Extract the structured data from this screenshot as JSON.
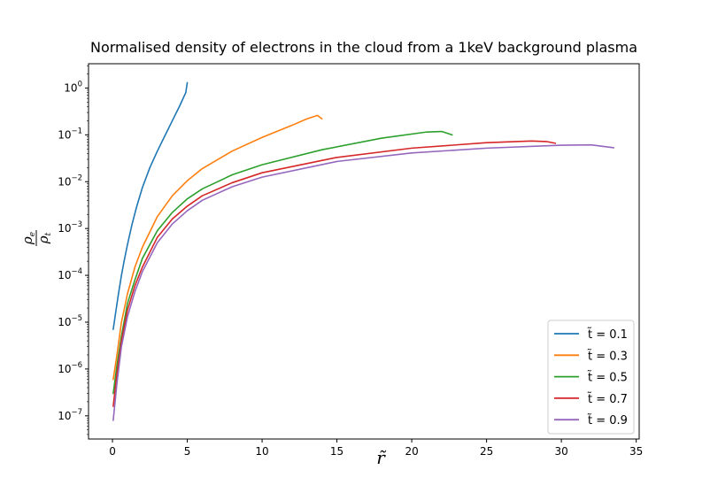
{
  "chart_data": {
    "type": "line",
    "title": "Normalised density of electrons in the cloud from a 1keV background plasma",
    "xlabel": "r̃",
    "ylabel": "ρe / ρt",
    "ylabel_num": "ρ",
    "ylabel_num_sub": "e",
    "ylabel_den": "ρ",
    "ylabel_den_sub": "t",
    "xlim": [
      -1.6,
      35.2
    ],
    "ylim": [
      3.2e-08,
      3.3
    ],
    "yscale": "log",
    "grid": false,
    "legend_position": "lower-right",
    "x_ticks": [
      {
        "value": 0,
        "label": "0"
      },
      {
        "value": 5,
        "label": "5"
      },
      {
        "value": 10,
        "label": "10"
      },
      {
        "value": 15,
        "label": "15"
      },
      {
        "value": 20,
        "label": "20"
      },
      {
        "value": 25,
        "label": "25"
      },
      {
        "value": 30,
        "label": "30"
      },
      {
        "value": 35,
        "label": "35"
      }
    ],
    "y_ticks": [
      {
        "exp": 0,
        "base": "10",
        "power": "0"
      },
      {
        "exp": -1,
        "base": "10",
        "power": "−1"
      },
      {
        "exp": -2,
        "base": "10",
        "power": "−2"
      },
      {
        "exp": -3,
        "base": "10",
        "power": "−3"
      },
      {
        "exp": -4,
        "base": "10",
        "power": "−4"
      },
      {
        "exp": -5,
        "base": "10",
        "power": "−5"
      },
      {
        "exp": -6,
        "base": "10",
        "power": "−6"
      },
      {
        "exp": -7,
        "base": "10",
        "power": "−7"
      }
    ],
    "series": [
      {
        "name": "t̃ = 0.1",
        "color": "#1f77b4",
        "x": [
          0.05,
          0.2,
          0.4,
          0.6,
          0.8,
          1.0,
          1.3,
          1.6,
          2.0,
          2.5,
          3.0,
          3.5,
          4.0,
          4.5,
          4.9,
          5.0
        ],
        "y": [
          7e-06,
          1.5e-05,
          4e-05,
          0.0001,
          0.00022,
          0.00045,
          0.0012,
          0.0028,
          0.0075,
          0.02,
          0.045,
          0.095,
          0.2,
          0.42,
          0.8,
          1.3
        ]
      },
      {
        "name": "t̃ = 0.3",
        "color": "#ff7f0e",
        "x": [
          0.05,
          0.3,
          0.6,
          1.0,
          1.5,
          2.0,
          3.0,
          4.0,
          5.0,
          6.0,
          8.0,
          10.0,
          12.0,
          13.0,
          13.7,
          14.0
        ],
        "y": [
          6e-07,
          2e-06,
          1e-05,
          4e-05,
          0.00015,
          0.0004,
          0.0018,
          0.005,
          0.0105,
          0.019,
          0.045,
          0.088,
          0.16,
          0.22,
          0.26,
          0.22
        ]
      },
      {
        "name": "t̃ = 0.5",
        "color": "#2ca02c",
        "x": [
          0.05,
          0.3,
          0.6,
          1.0,
          1.5,
          2.0,
          3.0,
          4.0,
          5.0,
          6.0,
          8.0,
          10.0,
          14.0,
          18.0,
          21.0,
          22.0,
          22.7
        ],
        "y": [
          3e-07,
          1.2e-06,
          5e-06,
          2.5e-05,
          8e-05,
          0.00023,
          0.0009,
          0.0022,
          0.0043,
          0.007,
          0.014,
          0.023,
          0.048,
          0.085,
          0.115,
          0.118,
          0.1
        ]
      },
      {
        "name": "t̃ = 0.7",
        "color": "#d62728",
        "x": [
          0.05,
          0.3,
          0.6,
          1.0,
          1.5,
          2.0,
          3.0,
          4.0,
          5.0,
          6.0,
          8.0,
          10.0,
          15.0,
          20.0,
          25.0,
          28.0,
          29.0,
          29.6
        ],
        "y": [
          1.6e-07,
          8e-07,
          4e-06,
          1.8e-05,
          6e-05,
          0.00015,
          0.00065,
          0.0016,
          0.003,
          0.005,
          0.0095,
          0.0155,
          0.033,
          0.052,
          0.068,
          0.074,
          0.072,
          0.066
        ]
      },
      {
        "name": "t̃ = 0.9",
        "color": "#9467bd",
        "x": [
          0.05,
          0.3,
          0.6,
          1.0,
          1.5,
          2.0,
          3.0,
          4.0,
          5.0,
          6.0,
          8.0,
          10.0,
          15.0,
          20.0,
          25.0,
          30.0,
          32.0,
          33.5
        ],
        "y": [
          8e-08,
          5e-07,
          3e-06,
          1.3e-05,
          4.5e-05,
          0.00012,
          0.0005,
          0.00125,
          0.0024,
          0.004,
          0.0078,
          0.0125,
          0.027,
          0.041,
          0.052,
          0.06,
          0.061,
          0.053
        ]
      }
    ]
  }
}
